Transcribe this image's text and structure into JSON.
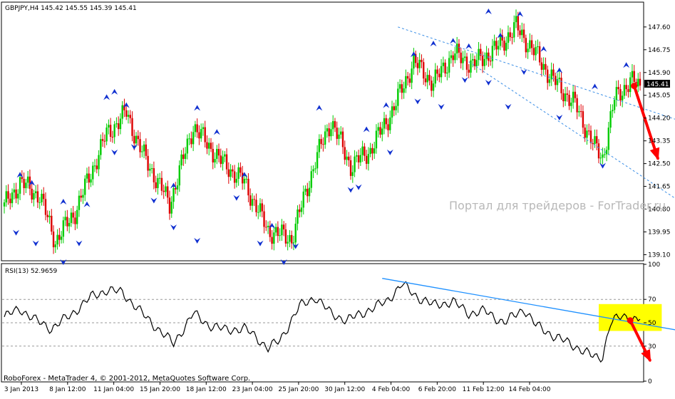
{
  "symbol_header": "GBPJPY,H4  145.42 145.55 145.39 145.41",
  "rsi_header": "RSI(13) 52.9659",
  "watermark": "Портал для трейдеров - ForTrader.ru",
  "copyright": "RoboForex - MetaTrader 4, © 2001-2012, MetaQuotes Software Corp.",
  "current_price_label": "145.41",
  "colors": {
    "bull": "#00cc00",
    "bear": "#dd0000",
    "fractal": "#1030d0",
    "channel": "#3a8ee6",
    "rsi_line": "#000000",
    "trendline": "#1e90ff",
    "highlight": "#ffff00",
    "arrow": "#ff0000"
  },
  "chart_data": [
    {
      "type": "candlestick",
      "title": "GBPJPY,H4",
      "ylim": [
        138.9,
        148.5
      ],
      "y_ticks": [
        "147.60",
        "146.75",
        "145.90",
        "145.05",
        "144.20",
        "143.35",
        "142.50",
        "141.65",
        "140.80",
        "139.95",
        "139.10"
      ],
      "last_price": 145.41,
      "x_ticks": [
        "3 Jan 2013",
        "8 Jan 12:00",
        "11 Jan 04:00",
        "15 Jan 20:00",
        "18 Jan 12:00",
        "23 Jan 04:00",
        "25 Jan 20:00",
        "30 Jan 12:00",
        "4 Feb 04:00",
        "6 Feb 20:00",
        "11 Feb 12:00",
        "14 Feb 04:00"
      ],
      "price_path_anchors": [
        [
          0,
          140.9
        ],
        [
          8,
          141.8
        ],
        [
          18,
          141.3
        ],
        [
          26,
          139.6
        ],
        [
          36,
          140.7
        ],
        [
          52,
          143.6
        ],
        [
          62,
          144.4
        ],
        [
          70,
          142.9
        ],
        [
          84,
          141.0
        ],
        [
          96,
          143.9
        ],
        [
          110,
          142.6
        ],
        [
          122,
          141.8
        ],
        [
          134,
          140.0
        ],
        [
          146,
          139.7
        ],
        [
          158,
          142.6
        ],
        [
          166,
          144.1
        ],
        [
          176,
          142.4
        ],
        [
          186,
          143.0
        ],
        [
          198,
          144.6
        ],
        [
          208,
          146.3
        ],
        [
          218,
          145.5
        ],
        [
          228,
          146.6
        ],
        [
          238,
          146.2
        ],
        [
          250,
          146.8
        ],
        [
          260,
          147.6
        ],
        [
          268,
          146.8
        ],
        [
          278,
          145.7
        ],
        [
          290,
          144.7
        ],
        [
          300,
          143.1
        ],
        [
          304,
          142.7
        ],
        [
          310,
          144.9
        ],
        [
          318,
          145.6
        ],
        [
          322,
          145.41
        ]
      ],
      "fractals": {
        "up": [
          [
            8,
            142.0
          ],
          [
            14,
            141.7
          ],
          [
            30,
            141.0
          ],
          [
            42,
            140.9
          ],
          [
            52,
            144.9
          ],
          [
            56,
            145.1
          ],
          [
            62,
            144.6
          ],
          [
            86,
            141.6
          ],
          [
            98,
            144.5
          ],
          [
            108,
            143.6
          ],
          [
            122,
            142.0
          ],
          [
            136,
            140.1
          ],
          [
            160,
            144.5
          ],
          [
            184,
            143.7
          ],
          [
            194,
            144.6
          ],
          [
            208,
            146.5
          ],
          [
            218,
            146.9
          ],
          [
            228,
            147.0
          ],
          [
            236,
            146.8
          ],
          [
            246,
            148.1
          ],
          [
            252,
            147.2
          ],
          [
            262,
            148.0
          ],
          [
            274,
            146.7
          ],
          [
            282,
            145.9
          ],
          [
            300,
            145.3
          ],
          [
            316,
            146.1
          ]
        ],
        "down": [
          [
            6,
            140.0
          ],
          [
            16,
            139.6
          ],
          [
            30,
            138.9
          ],
          [
            38,
            139.6
          ],
          [
            56,
            143.0
          ],
          [
            66,
            143.2
          ],
          [
            76,
            141.2
          ],
          [
            86,
            140.2
          ],
          [
            98,
            139.7
          ],
          [
            118,
            141.3
          ],
          [
            130,
            139.6
          ],
          [
            142,
            138.9
          ],
          [
            148,
            139.5
          ],
          [
            176,
            141.6
          ],
          [
            180,
            141.7
          ],
          [
            196,
            143.0
          ],
          [
            210,
            144.9
          ],
          [
            222,
            144.7
          ],
          [
            234,
            145.7
          ],
          [
            246,
            145.6
          ],
          [
            256,
            144.7
          ],
          [
            264,
            146.0
          ],
          [
            282,
            144.3
          ],
          [
            304,
            142.5
          ]
        ]
      },
      "channel": {
        "upper": [
          [
            200,
            147.6
          ],
          [
            380,
            143.2
          ]
        ],
        "lower": [
          [
            236,
            146.3
          ],
          [
            380,
            139.3
          ]
        ]
      },
      "forecast_arrow": [
        [
          320,
          145.4
        ],
        [
          332,
          142.7
        ]
      ]
    },
    {
      "type": "line",
      "title": "RSI(13)",
      "series_label": "RSI(13) 52.9659",
      "ylim": [
        0,
        100
      ],
      "y_ticks": [
        100,
        70,
        50,
        30,
        0
      ],
      "levels": [
        70,
        50,
        30
      ],
      "last_value": 52.9659,
      "rsi_anchors": [
        [
          0,
          55
        ],
        [
          8,
          62
        ],
        [
          16,
          52
        ],
        [
          24,
          45
        ],
        [
          34,
          57
        ],
        [
          44,
          72
        ],
        [
          52,
          78
        ],
        [
          60,
          76
        ],
        [
          70,
          58
        ],
        [
          78,
          45
        ],
        [
          86,
          32
        ],
        [
          96,
          58
        ],
        [
          104,
          48
        ],
        [
          112,
          44
        ],
        [
          122,
          45
        ],
        [
          128,
          38
        ],
        [
          134,
          28
        ],
        [
          140,
          35
        ],
        [
          150,
          64
        ],
        [
          158,
          72
        ],
        [
          166,
          58
        ],
        [
          174,
          52
        ],
        [
          184,
          60
        ],
        [
          194,
          68
        ],
        [
          202,
          83
        ],
        [
          210,
          72
        ],
        [
          218,
          65
        ],
        [
          228,
          68
        ],
        [
          236,
          58
        ],
        [
          244,
          60
        ],
        [
          254,
          50
        ],
        [
          264,
          62
        ],
        [
          270,
          48
        ],
        [
          280,
          38
        ],
        [
          290,
          30
        ],
        [
          298,
          22
        ],
        [
          302,
          20
        ],
        [
          304,
          22
        ],
        [
          308,
          50
        ],
        [
          314,
          56
        ],
        [
          320,
          53
        ],
        [
          322,
          52.97
        ]
      ],
      "trendline": [
        [
          192,
          88
        ],
        [
          378,
          33
        ]
      ],
      "highlight_box": {
        "x": [
          302,
          334
        ],
        "y": [
          43,
          66
        ]
      },
      "forecast_arrow": [
        [
          318,
          52
        ],
        [
          328,
          18
        ]
      ]
    }
  ]
}
